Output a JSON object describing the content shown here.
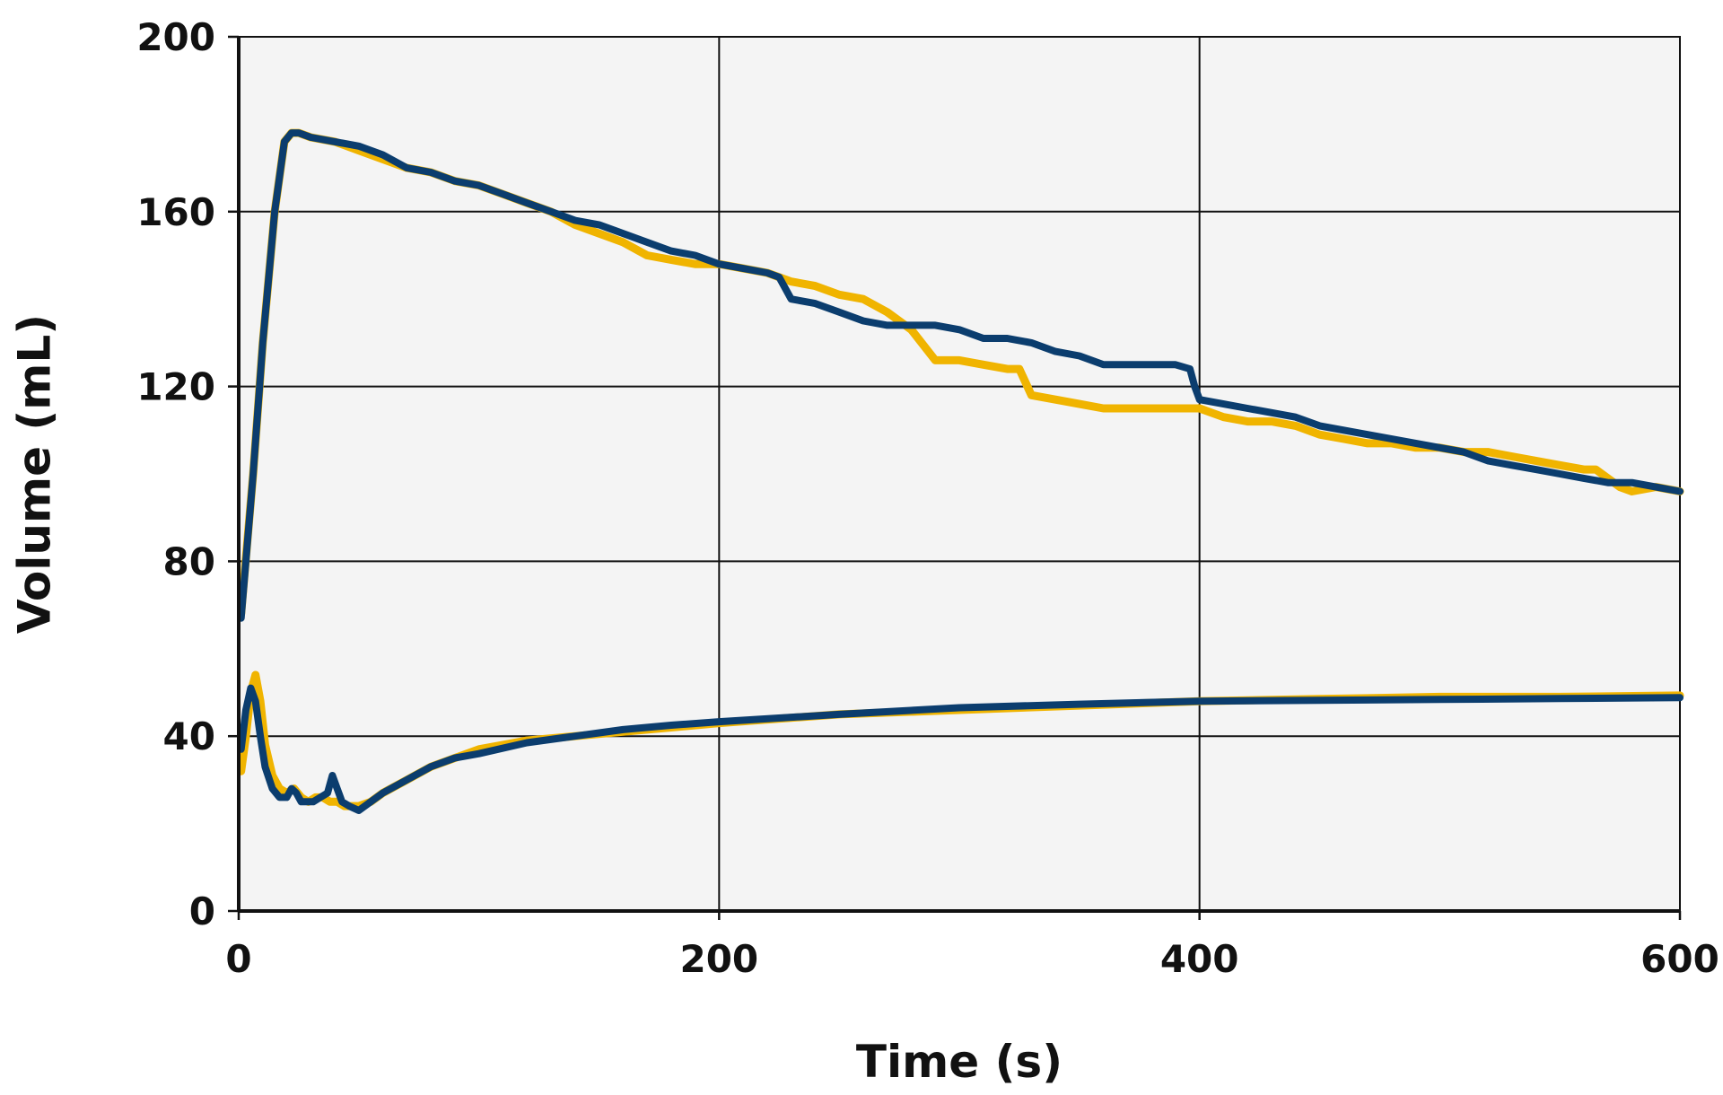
{
  "chart_data": {
    "type": "line",
    "title": "",
    "xlabel": "Time (s)",
    "ylabel": "Volume (mL)",
    "xlim": [
      0,
      600
    ],
    "ylim": [
      0,
      200
    ],
    "xticks": [
      0,
      200,
      400,
      600
    ],
    "yticks": [
      0,
      40,
      80,
      120,
      160,
      200
    ],
    "grid": true,
    "legend": "none",
    "colors": {
      "gold": "#f0b400",
      "navy": "#0b3d6e",
      "plot_bg": "#f4f4f4"
    },
    "series": [
      {
        "color": "#f0b400",
        "x": [
          1,
          6,
          10,
          15,
          19,
          22,
          25,
          30,
          40,
          50,
          60,
          70,
          80,
          90,
          100,
          110,
          120,
          130,
          140,
          150,
          160,
          170,
          180,
          190,
          200,
          210,
          220,
          225,
          230,
          240,
          250,
          260,
          270,
          280,
          290,
          300,
          310,
          320,
          325,
          330,
          340,
          350,
          360,
          370,
          380,
          390,
          398,
          400,
          410,
          420,
          430,
          440,
          450,
          460,
          470,
          480,
          490,
          500,
          510,
          520,
          530,
          540,
          550,
          560,
          565,
          570,
          575,
          580,
          590,
          600
        ],
        "y": [
          68,
          100,
          130,
          160,
          176,
          178,
          178,
          177,
          176,
          174,
          172,
          170,
          169,
          167,
          166,
          164,
          162,
          160,
          157,
          155,
          153,
          150,
          149,
          148,
          148,
          147,
          146,
          145,
          144,
          143,
          141,
          140,
          137,
          133,
          126,
          126,
          125,
          124,
          124,
          118,
          117,
          116,
          115,
          115,
          115,
          115,
          115,
          115,
          113,
          112,
          112,
          111,
          109,
          108,
          107,
          107,
          106,
          106,
          105,
          105,
          104,
          103,
          102,
          101,
          101,
          99,
          97,
          96,
          97,
          96
        ]
      },
      {
        "color": "#0b3d6e",
        "x": [
          1,
          6,
          10,
          15,
          19,
          22,
          25,
          30,
          40,
          50,
          60,
          70,
          80,
          90,
          100,
          110,
          120,
          130,
          140,
          150,
          160,
          170,
          180,
          190,
          200,
          210,
          220,
          225,
          230,
          240,
          250,
          260,
          270,
          280,
          290,
          300,
          310,
          320,
          330,
          340,
          350,
          360,
          370,
          380,
          390,
          396,
          398,
          400,
          410,
          420,
          430,
          440,
          450,
          460,
          470,
          480,
          490,
          500,
          510,
          520,
          530,
          540,
          550,
          560,
          570,
          580,
          590,
          600
        ],
        "y": [
          67,
          100,
          130,
          160,
          176,
          178,
          178,
          177,
          176,
          175,
          173,
          170,
          169,
          167,
          166,
          164,
          162,
          160,
          158,
          157,
          155,
          153,
          151,
          150,
          148,
          147,
          146,
          145,
          140,
          139,
          137,
          135,
          134,
          134,
          134,
          133,
          131,
          131,
          130,
          128,
          127,
          125,
          125,
          125,
          125,
          124,
          120,
          117,
          116,
          115,
          114,
          113,
          111,
          110,
          109,
          108,
          107,
          106,
          105,
          103,
          102,
          101,
          100,
          99,
          98,
          98,
          97,
          96
        ]
      },
      {
        "color": "#f0b400",
        "x": [
          1,
          3,
          5,
          7,
          9,
          11,
          14,
          17,
          20,
          23,
          26,
          29,
          32,
          35,
          38,
          41,
          44,
          47,
          50,
          55,
          60,
          70,
          80,
          90,
          100,
          120,
          140,
          160,
          180,
          200,
          250,
          300,
          350,
          400,
          450,
          500,
          550,
          600
        ],
        "y": [
          32,
          40,
          50,
          54,
          48,
          38,
          31,
          28,
          27,
          28,
          26,
          25,
          26,
          26,
          25,
          25,
          24,
          24,
          24,
          25,
          27,
          30,
          33,
          35,
          37,
          39,
          40,
          41,
          42,
          43,
          45,
          46,
          47,
          48,
          48.5,
          49,
          49,
          49.3
        ]
      },
      {
        "color": "#0b3d6e",
        "x": [
          1,
          3,
          5,
          7,
          9,
          11,
          14,
          17,
          20,
          22,
          24,
          26,
          28,
          31,
          34,
          37,
          39,
          41,
          43,
          46,
          50,
          55,
          60,
          70,
          80,
          90,
          100,
          120,
          140,
          160,
          180,
          200,
          250,
          300,
          350,
          400,
          450,
          500,
          550,
          600
        ],
        "y": [
          37,
          46,
          51,
          48,
          40,
          33,
          28,
          26,
          26,
          28,
          27,
          25,
          25,
          25,
          26,
          27,
          31,
          28,
          25,
          24,
          23,
          25,
          27,
          30,
          33,
          35,
          36,
          38.5,
          40,
          41.5,
          42.5,
          43.3,
          45,
          46.5,
          47.3,
          48,
          48.2,
          48.4,
          48.6,
          48.8
        ]
      }
    ]
  }
}
